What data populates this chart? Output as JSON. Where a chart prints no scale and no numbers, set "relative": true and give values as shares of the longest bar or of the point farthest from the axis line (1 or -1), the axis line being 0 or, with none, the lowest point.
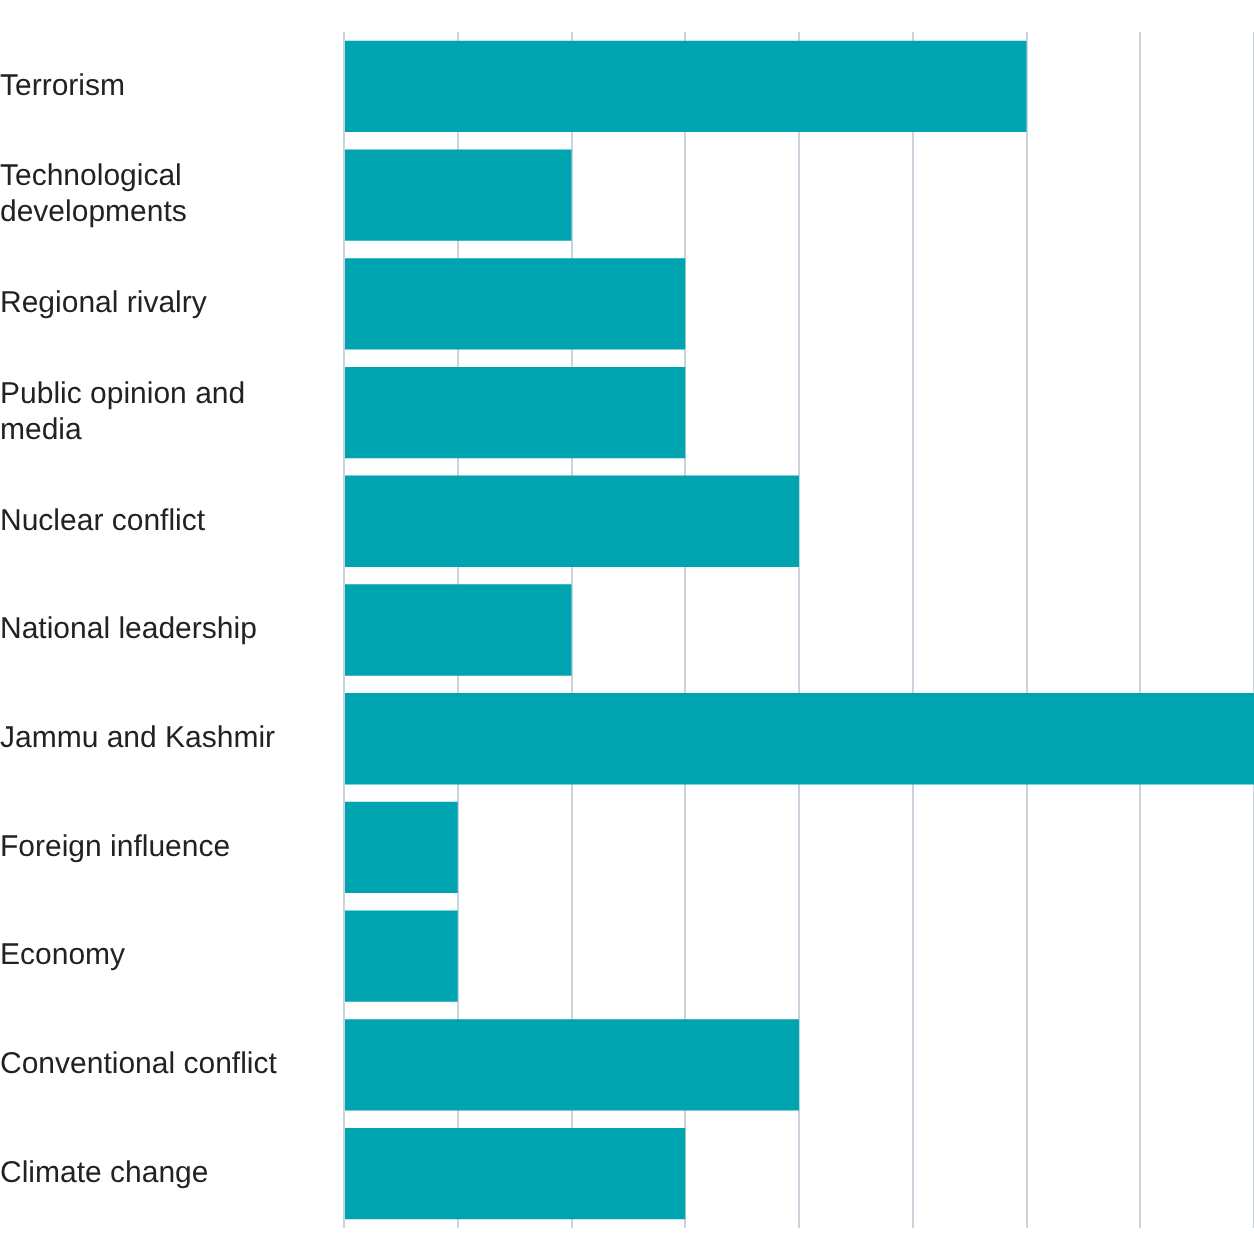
{
  "chart_data": {
    "type": "bar",
    "orientation": "horizontal",
    "relative": true,
    "grid": "x",
    "legend": false,
    "categories": [
      "Terrorism",
      "Technological developments",
      "Regional rivalry",
      "Public opinion and media",
      "Nuclear conflict",
      "National leadership",
      "Jammu and Kashmir",
      "Foreign influence",
      "Economy",
      "Conventional conflict",
      "Climate change"
    ],
    "values": [
      0.75,
      0.25,
      0.375,
      0.375,
      0.5,
      0.25,
      1,
      0.125,
      0.125,
      0.5,
      0.375
    ],
    "color": "#00a4b0"
  }
}
